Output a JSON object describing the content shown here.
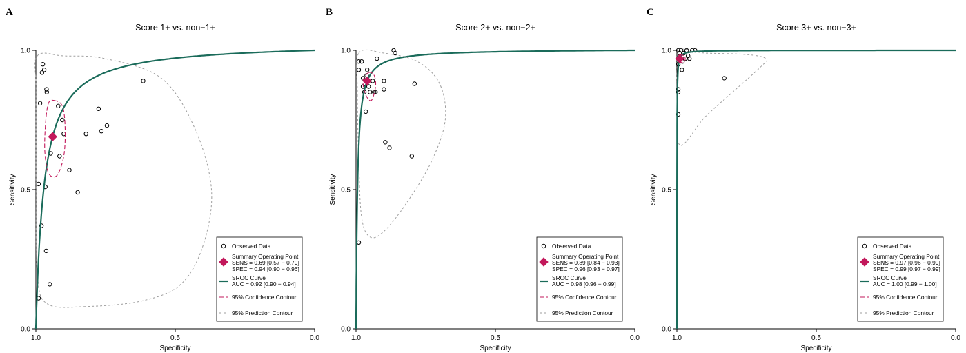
{
  "chart_data": [
    {
      "type": "scatter",
      "panel_letter": "A",
      "title": "Score 1+ vs. non−1+",
      "xlabel": "Specificity",
      "ylabel": "Sensitivity",
      "xlim": [
        1.0,
        0.0
      ],
      "ylim": [
        0.0,
        1.0
      ],
      "x_reversed": true,
      "xticks": [
        "1.0",
        "0.5",
        "0.0"
      ],
      "yticks": [
        "0.0",
        "0.5",
        "1.0"
      ],
      "grid": false,
      "legend_position": "bottom-right",
      "observed": {
        "name": "Observed Data",
        "points": [
          [
            0.99,
            0.52
          ],
          [
            0.99,
            0.11
          ],
          [
            0.985,
            0.81
          ],
          [
            0.98,
            0.37
          ],
          [
            0.978,
            0.92
          ],
          [
            0.975,
            0.95
          ],
          [
            0.97,
            0.93
          ],
          [
            0.966,
            0.51
          ],
          [
            0.963,
            0.28
          ],
          [
            0.962,
            0.86
          ],
          [
            0.961,
            0.85
          ],
          [
            0.95,
            0.16
          ],
          [
            0.947,
            0.63
          ],
          [
            0.94,
            0.69
          ],
          [
            0.92,
            0.8
          ],
          [
            0.915,
            0.62
          ],
          [
            0.905,
            0.75
          ],
          [
            0.9,
            0.7
          ],
          [
            0.88,
            0.57
          ],
          [
            0.85,
            0.49
          ],
          [
            0.82,
            0.7
          ],
          [
            0.775,
            0.79
          ],
          [
            0.765,
            0.71
          ],
          [
            0.745,
            0.73
          ],
          [
            0.615,
            0.89
          ]
        ]
      },
      "summary": {
        "name": "Summary Operating Point",
        "spec": 0.94,
        "sens": 0.69,
        "sens_text": "SENS = 0.69 [0.57 − 0.79]",
        "spec_text": "SPEC = 0.94 [0.90 − 0.96]",
        "color": "#c2185b"
      },
      "sroc": {
        "name": "SROC Curve",
        "auc_text": "AUC = 0.92 [0.90 − 0.94]",
        "color": "#1a6b5a"
      },
      "confidence": {
        "name": "95% Confidence Contour",
        "color": "#c2185b",
        "points": [
          [
            0.935,
            0.82
          ],
          [
            0.905,
            0.8
          ],
          [
            0.895,
            0.72
          ],
          [
            0.9,
            0.62
          ],
          [
            0.925,
            0.55
          ],
          [
            0.955,
            0.56
          ],
          [
            0.968,
            0.64
          ],
          [
            0.965,
            0.74
          ],
          [
            0.955,
            0.81
          ]
        ]
      },
      "prediction": {
        "name": "95% Prediction Contour",
        "color": "#9e9e9e",
        "points": [
          [
            0.995,
            0.98
          ],
          [
            0.9,
            0.98
          ],
          [
            0.75,
            0.97
          ],
          [
            0.55,
            0.9
          ],
          [
            0.43,
            0.72
          ],
          [
            0.37,
            0.5
          ],
          [
            0.4,
            0.3
          ],
          [
            0.48,
            0.16
          ],
          [
            0.62,
            0.1
          ],
          [
            0.82,
            0.08
          ],
          [
            0.96,
            0.09
          ],
          [
            0.995,
            0.2
          ],
          [
            0.999,
            0.5
          ],
          [
            0.999,
            0.85
          ]
        ]
      }
    },
    {
      "type": "scatter",
      "panel_letter": "B",
      "title": "Score 2+ vs. non−2+",
      "xlabel": "Specificity",
      "ylabel": "Sensitivity",
      "xlim": [
        1.0,
        0.0
      ],
      "ylim": [
        0.0,
        1.0
      ],
      "x_reversed": true,
      "xticks": [
        "1.0",
        "0.5",
        "0.0"
      ],
      "yticks": [
        "0.0",
        "0.5",
        "1.0"
      ],
      "grid": false,
      "legend_position": "bottom-right",
      "observed": {
        "name": "Observed Data",
        "points": [
          [
            0.99,
            0.96
          ],
          [
            0.99,
            0.93
          ],
          [
            0.99,
            0.31
          ],
          [
            0.98,
            0.96
          ],
          [
            0.975,
            0.9
          ],
          [
            0.975,
            0.87
          ],
          [
            0.97,
            0.85
          ],
          [
            0.965,
            0.78
          ],
          [
            0.962,
            0.91
          ],
          [
            0.96,
            0.93
          ],
          [
            0.955,
            0.87
          ],
          [
            0.95,
            0.85
          ],
          [
            0.94,
            0.89
          ],
          [
            0.935,
            0.85
          ],
          [
            0.93,
            0.85
          ],
          [
            0.925,
            0.97
          ],
          [
            0.9,
            0.86
          ],
          [
            0.9,
            0.89
          ],
          [
            0.895,
            0.67
          ],
          [
            0.88,
            0.65
          ],
          [
            0.865,
            1.0
          ],
          [
            0.86,
            0.99
          ],
          [
            0.8,
            0.62
          ],
          [
            0.79,
            0.88
          ]
        ]
      },
      "summary": {
        "name": "Summary Operating Point",
        "spec": 0.96,
        "sens": 0.89,
        "sens_text": "SENS = 0.89 [0.84 − 0.93]",
        "spec_text": "SPEC = 0.96 [0.93 − 0.97]",
        "color": "#c2185b"
      },
      "sroc": {
        "name": "SROC Curve",
        "auc_text": "AUC = 0.98 [0.96 − 0.99]",
        "color": "#1a6b5a"
      },
      "confidence": {
        "name": "95% Confidence Contour",
        "color": "#c2185b",
        "points": [
          [
            0.955,
            0.92
          ],
          [
            0.935,
            0.91
          ],
          [
            0.93,
            0.87
          ],
          [
            0.945,
            0.82
          ],
          [
            0.965,
            0.84
          ],
          [
            0.975,
            0.89
          ]
        ]
      },
      "prediction": {
        "name": "95% Prediction Contour",
        "color": "#9e9e9e",
        "points": [
          [
            0.99,
            0.99
          ],
          [
            0.9,
            0.99
          ],
          [
            0.78,
            0.96
          ],
          [
            0.7,
            0.88
          ],
          [
            0.68,
            0.75
          ],
          [
            0.73,
            0.6
          ],
          [
            0.82,
            0.45
          ],
          [
            0.9,
            0.35
          ],
          [
            0.95,
            0.33
          ],
          [
            0.98,
            0.4
          ],
          [
            0.99,
            0.6
          ],
          [
            0.995,
            0.85
          ]
        ]
      }
    },
    {
      "type": "scatter",
      "panel_letter": "C",
      "title": "Score 3+ vs. non−3+",
      "xlabel": "Specificity",
      "ylabel": "Sensitivity",
      "xlim": [
        1.0,
        0.0
      ],
      "ylim": [
        0.0,
        1.0
      ],
      "x_reversed": true,
      "xticks": [
        "1.0",
        "0.5",
        "0.0"
      ],
      "yticks": [
        "0.0",
        "0.5",
        "1.0"
      ],
      "grid": false,
      "legend_position": "bottom-right",
      "observed": {
        "name": "Observed Data",
        "points": [
          [
            0.995,
            1.0
          ],
          [
            0.995,
            0.97
          ],
          [
            0.995,
            0.95
          ],
          [
            0.995,
            0.86
          ],
          [
            0.995,
            0.85
          ],
          [
            0.995,
            0.77
          ],
          [
            0.99,
            0.98
          ],
          [
            0.99,
            0.99
          ],
          [
            0.985,
            1.0
          ],
          [
            0.982,
            0.93
          ],
          [
            0.98,
            0.96
          ],
          [
            0.975,
            0.99
          ],
          [
            0.97,
            0.97
          ],
          [
            0.965,
            1.0
          ],
          [
            0.96,
            0.98
          ],
          [
            0.955,
            0.97
          ],
          [
            0.945,
            1.0
          ],
          [
            0.935,
            1.0
          ],
          [
            0.83,
            0.9
          ]
        ]
      },
      "summary": {
        "name": "Summary Operating Point",
        "spec": 0.99,
        "sens": 0.97,
        "sens_text": "SENS = 0.97 [0.96 − 0.99]",
        "spec_text": "SPEC = 0.99 [0.97 − 0.99]",
        "color": "#c2185b"
      },
      "sroc": {
        "name": "SROC Curve",
        "auc_text": "AUC = 1.00 [0.99 − 1.00]",
        "color": "#1a6b5a"
      },
      "confidence": {
        "name": "95% Confidence Contour",
        "color": "#c2185b",
        "points": [
          [
            0.99,
            0.985
          ],
          [
            0.975,
            0.98
          ],
          [
            0.97,
            0.97
          ],
          [
            0.975,
            0.955
          ],
          [
            0.99,
            0.96
          ],
          [
            0.995,
            0.975
          ]
        ]
      },
      "prediction": {
        "name": "95% Prediction Contour",
        "color": "#9e9e9e",
        "points": [
          [
            0.995,
            0.995
          ],
          [
            0.9,
            0.99
          ],
          [
            0.75,
            0.985
          ],
          [
            0.68,
            0.97
          ],
          [
            0.7,
            0.94
          ],
          [
            0.8,
            0.85
          ],
          [
            0.9,
            0.76
          ],
          [
            0.99,
            0.66
          ],
          [
            0.997,
            0.85
          ]
        ]
      }
    }
  ]
}
